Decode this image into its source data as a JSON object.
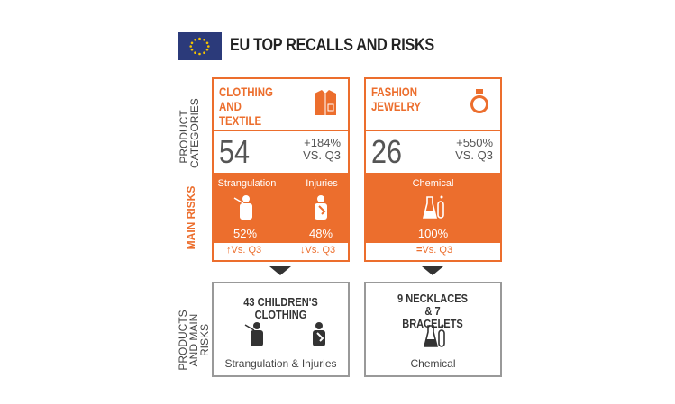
{
  "header": {
    "title": "EU TOP RECALLS AND RISKS",
    "flag_icon": "eu-flag-icon"
  },
  "side_labels": {
    "product_categories": "PRODUCT CATEGORIES",
    "main_risks": "MAIN RISKS",
    "products_main_risks": "PRODUCTS AND MAIN RISKS"
  },
  "colors": {
    "accent": "#ec6e2d",
    "text": "#555555",
    "flag": "#2b3a7a"
  },
  "cards": [
    {
      "category": "CLOTHING AND TEXTILE",
      "icon": "shirt-icon",
      "count": "54",
      "change": "+184%",
      "vs": "VS. Q3",
      "risks": [
        {
          "label": "Strangulation",
          "pct": "52%",
          "icon": "strangulation-icon",
          "trend": "Vs. Q3",
          "trend_icon": "arrow-up-icon"
        },
        {
          "label": "Injuries",
          "pct": "48%",
          "icon": "injury-icon",
          "trend": "Vs. Q3",
          "trend_icon": "arrow-down-icon"
        }
      ],
      "product": {
        "title": "43 CHILDREN'S CLOTHING",
        "footer": "Strangulation & Injuries"
      }
    },
    {
      "category": "FASHION JEWELRY",
      "icon": "ring-icon",
      "count": "26",
      "change": "+550%",
      "vs": "VS. Q3",
      "risks": [
        {
          "label": "Chemical",
          "pct": "100%",
          "icon": "chemical-icon",
          "trend": "Vs. Q3",
          "trend_icon": "equal-icon"
        }
      ],
      "product": {
        "title": "9 NECKLACES & 7 BRACELETS",
        "footer": "Chemical"
      }
    }
  ],
  "symbols": {
    "up": "↑",
    "down": "↓",
    "equal": "="
  }
}
